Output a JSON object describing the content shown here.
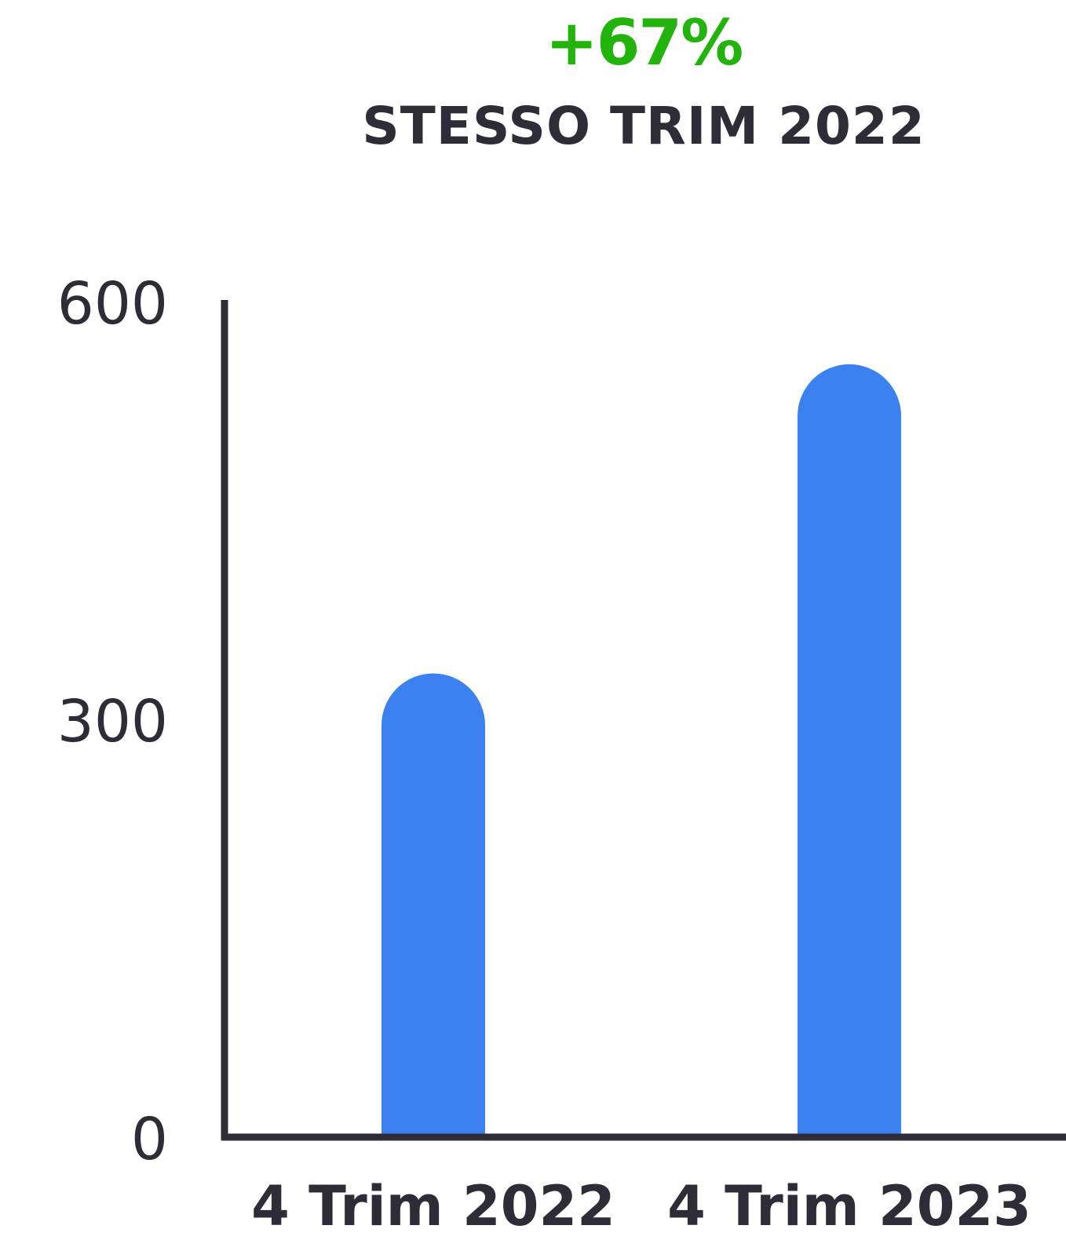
{
  "header": {
    "change": "+67%",
    "subtitle": "STESSO TRIM 2022"
  },
  "colors": {
    "accent_green": "#22b30c",
    "bar_blue": "#3b82f0",
    "axis_dark": "#2e2d37",
    "text_dark": "#2e2d37"
  },
  "chart_data": {
    "type": "bar",
    "title": "",
    "xlabel": "",
    "ylabel": "",
    "categories": [
      "4 Trim 2022",
      "4 Trim 2023"
    ],
    "values": [
      333,
      555
    ],
    "ylim": [
      0,
      600
    ],
    "yticks": [
      {
        "value": 0,
        "label": "0"
      },
      {
        "value": 300,
        "label": "300"
      },
      {
        "value": 600,
        "label": "600"
      }
    ],
    "grid": false,
    "legend": "none"
  }
}
